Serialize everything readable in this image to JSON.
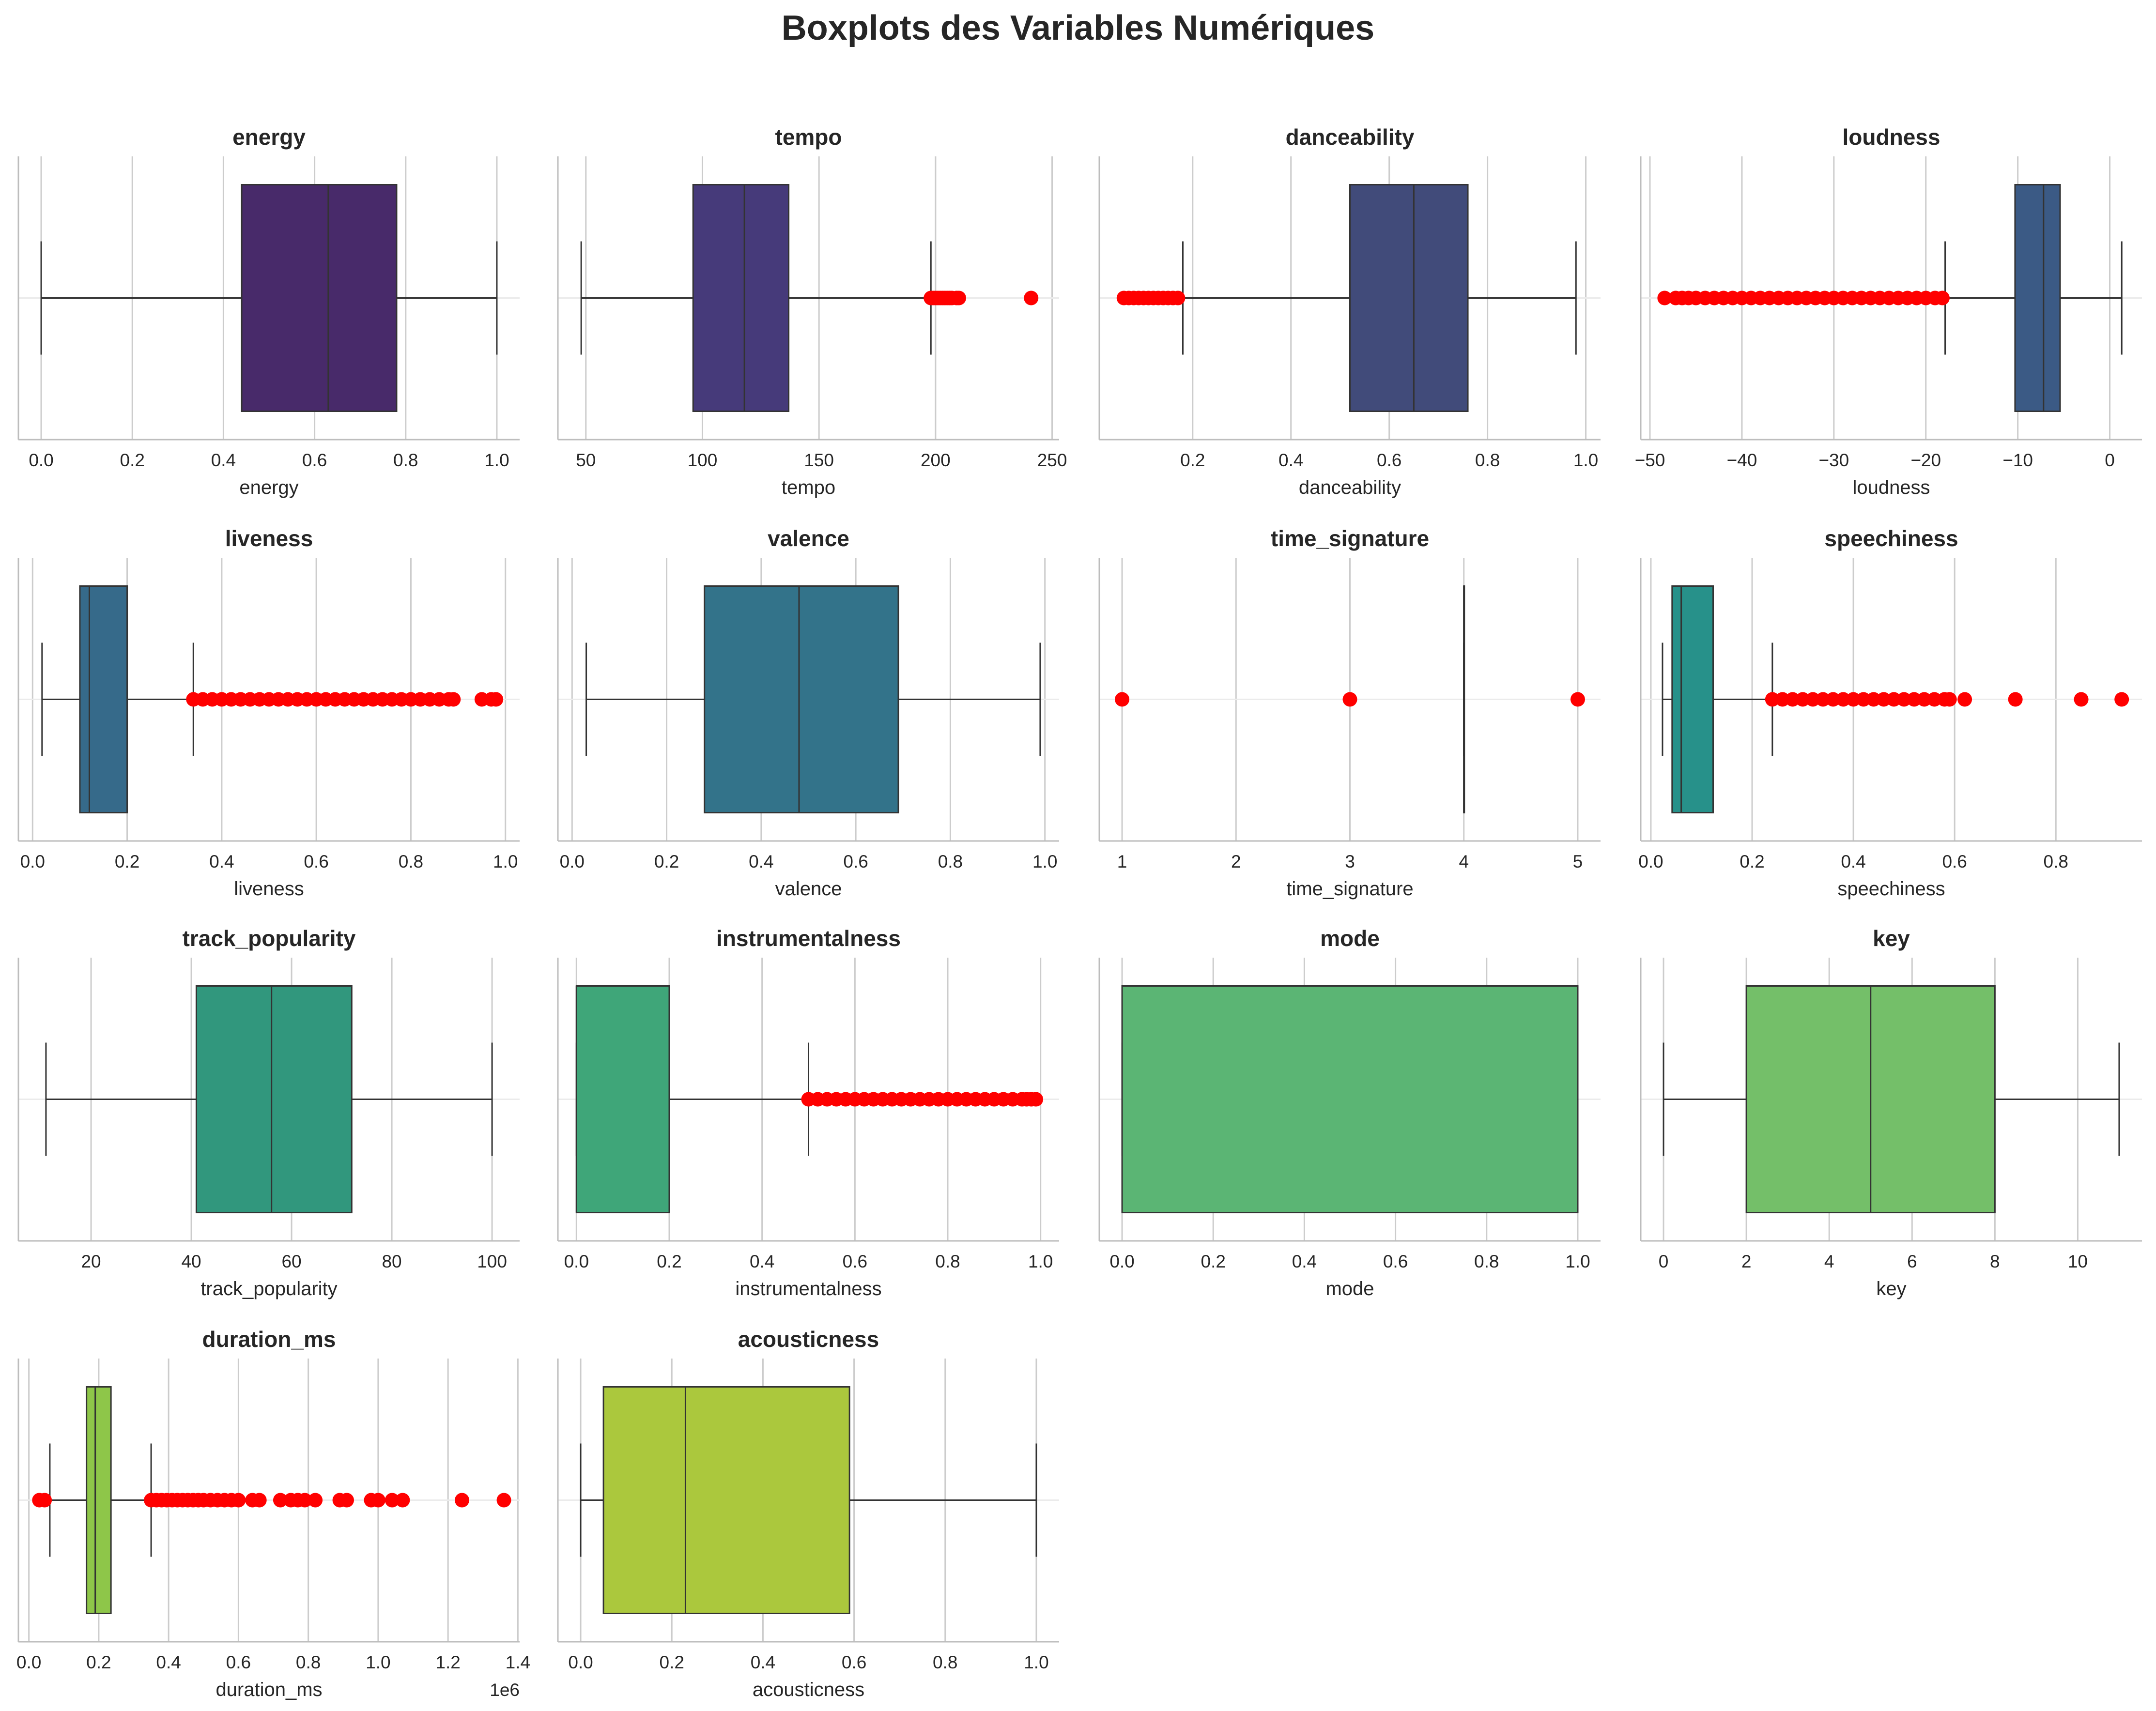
{
  "title": "Boxplots des Variables Numériques",
  "colors": {
    "outlier": "#ff0000",
    "grid": "#cccccc",
    "whisker": "#333333",
    "median": "#333333",
    "box_edge": "#333333"
  },
  "chart_data": [
    {
      "type": "box",
      "title": "energy",
      "xlabel": "energy",
      "xlim": [
        -0.05,
        1.05
      ],
      "ticks": [
        0.0,
        0.2,
        0.4,
        0.6,
        0.8,
        1.0
      ],
      "tick_labels": [
        "0.0",
        "0.2",
        "0.4",
        "0.6",
        "0.8",
        "1.0"
      ],
      "whisker_low": 0.0,
      "q1": 0.44,
      "median": 0.63,
      "q3": 0.78,
      "whisker_high": 1.0,
      "outliers": [],
      "color": "#482a6a"
    },
    {
      "type": "box",
      "title": "tempo",
      "xlabel": "tempo",
      "xlim": [
        38,
        253
      ],
      "ticks": [
        50,
        100,
        150,
        200,
        250
      ],
      "tick_labels": [
        "50",
        "100",
        "150",
        "200",
        "250"
      ],
      "whisker_low": 48,
      "q1": 96,
      "median": 118,
      "q3": 137,
      "whisker_high": 198,
      "outliers": [
        198,
        199,
        200,
        201,
        202,
        203,
        204,
        205,
        206,
        207,
        209,
        210,
        241
      ],
      "color": "#463a7a"
    },
    {
      "type": "box",
      "title": "danceability",
      "xlabel": "danceability",
      "xlim": [
        0.01,
        1.03
      ],
      "ticks": [
        0.2,
        0.4,
        0.6,
        0.8,
        1.0
      ],
      "tick_labels": [
        "0.2",
        "0.4",
        "0.6",
        "0.8",
        "1.0"
      ],
      "whisker_low": 0.18,
      "q1": 0.52,
      "median": 0.65,
      "q3": 0.76,
      "whisker_high": 0.98,
      "outliers": [
        0.06,
        0.07,
        0.08,
        0.09,
        0.1,
        0.11,
        0.12,
        0.13,
        0.14,
        0.15,
        0.16,
        0.17
      ],
      "color": "#414b7a"
    },
    {
      "type": "box",
      "title": "loudness",
      "xlabel": "loudness",
      "xlim": [
        -51,
        3.5
      ],
      "ticks": [
        -50,
        -40,
        -30,
        -20,
        -10,
        0
      ],
      "tick_labels": [
        "−50",
        "−40",
        "−30",
        "−20",
        "−10",
        "0"
      ],
      "whisker_low": -17.9,
      "q1": -10.3,
      "median": -7.2,
      "q3": -5.4,
      "whisker_high": 1.3,
      "outliers": [
        -48.4,
        -47.2,
        -46.5,
        -45.8,
        -45,
        -44,
        -43,
        -42,
        -41,
        -40,
        -39,
        -38,
        -37,
        -36,
        -35,
        -34,
        -33,
        -32,
        -31,
        -30,
        -29,
        -28,
        -27,
        -26,
        -25,
        -24,
        -23,
        -22,
        -21,
        -20,
        -19,
        -18.2
      ],
      "color": "#3b5a85"
    },
    {
      "type": "box",
      "title": "liveness",
      "xlabel": "liveness",
      "xlim": [
        -0.03,
        1.03
      ],
      "ticks": [
        0.0,
        0.2,
        0.4,
        0.6,
        0.8,
        1.0
      ],
      "tick_labels": [
        "0.0",
        "0.2",
        "0.4",
        "0.6",
        "0.8",
        "1.0"
      ],
      "whisker_low": 0.02,
      "q1": 0.1,
      "median": 0.12,
      "q3": 0.2,
      "whisker_high": 0.34,
      "outliers": [
        0.34,
        0.36,
        0.38,
        0.4,
        0.42,
        0.44,
        0.46,
        0.48,
        0.5,
        0.52,
        0.54,
        0.56,
        0.58,
        0.6,
        0.62,
        0.64,
        0.66,
        0.68,
        0.7,
        0.72,
        0.74,
        0.76,
        0.78,
        0.8,
        0.82,
        0.84,
        0.86,
        0.88,
        0.89,
        0.95,
        0.97,
        0.98
      ],
      "color": "#366a8a"
    },
    {
      "type": "box",
      "title": "valence",
      "xlabel": "valence",
      "xlim": [
        -0.03,
        1.03
      ],
      "ticks": [
        0.0,
        0.2,
        0.4,
        0.6,
        0.8,
        1.0
      ],
      "tick_labels": [
        "0.0",
        "0.2",
        "0.4",
        "0.6",
        "0.8",
        "1.0"
      ],
      "whisker_low": 0.03,
      "q1": 0.28,
      "median": 0.48,
      "q3": 0.69,
      "whisker_high": 0.99,
      "outliers": [],
      "color": "#33738a"
    },
    {
      "type": "box",
      "title": "time_signature",
      "xlabel": "time_signature",
      "xlim": [
        0.8,
        5.2
      ],
      "ticks": [
        1,
        2,
        3,
        4,
        5
      ],
      "tick_labels": [
        "1",
        "2",
        "3",
        "4",
        "5"
      ],
      "whisker_low": 4,
      "q1": 4,
      "median": 4,
      "q3": 4,
      "whisker_high": 4,
      "outliers": [
        1,
        3,
        5
      ],
      "color": "#2c818d"
    },
    {
      "type": "box",
      "title": "speechiness",
      "xlabel": "speechiness",
      "xlim": [
        -0.02,
        0.97
      ],
      "ticks": [
        0.0,
        0.2,
        0.4,
        0.6,
        0.8
      ],
      "tick_labels": [
        "0.0",
        "0.2",
        "0.4",
        "0.6",
        "0.8"
      ],
      "whisker_low": 0.023,
      "q1": 0.042,
      "median": 0.06,
      "q3": 0.123,
      "whisker_high": 0.24,
      "outliers": [
        0.24,
        0.26,
        0.28,
        0.3,
        0.32,
        0.34,
        0.36,
        0.38,
        0.4,
        0.42,
        0.44,
        0.46,
        0.48,
        0.5,
        0.52,
        0.54,
        0.56,
        0.58,
        0.59,
        0.62,
        0.72,
        0.85,
        0.93
      ],
      "color": "#27918a"
    },
    {
      "type": "box",
      "title": "track_popularity",
      "xlabel": "track_popularity",
      "xlim": [
        5.5,
        105.5
      ],
      "ticks": [
        20,
        40,
        60,
        80,
        100
      ],
      "tick_labels": [
        "20",
        "40",
        "60",
        "80",
        "100"
      ],
      "whisker_low": 11,
      "q1": 41,
      "median": 56,
      "q3": 72,
      "whisker_high": 100,
      "outliers": [],
      "color": "#31977d"
    },
    {
      "type": "box",
      "title": "instrumentalness",
      "xlabel": "instrumentalness",
      "xlim": [
        -0.04,
        1.04
      ],
      "ticks": [
        0.0,
        0.2,
        0.4,
        0.6,
        0.8,
        1.0
      ],
      "tick_labels": [
        "0.0",
        "0.2",
        "0.4",
        "0.6",
        "0.8",
        "1.0"
      ],
      "whisker_low": 0.0,
      "q1": 0.0,
      "median": 0.0,
      "q3": 0.2,
      "whisker_high": 0.5,
      "outliers": [
        0.5,
        0.52,
        0.54,
        0.56,
        0.58,
        0.6,
        0.62,
        0.64,
        0.66,
        0.68,
        0.7,
        0.72,
        0.74,
        0.76,
        0.78,
        0.8,
        0.82,
        0.84,
        0.86,
        0.88,
        0.9,
        0.92,
        0.94,
        0.96,
        0.97,
        0.98,
        0.99
      ],
      "color": "#3fa679"
    },
    {
      "type": "box",
      "title": "mode",
      "xlabel": "mode",
      "xlim": [
        -0.05,
        1.05
      ],
      "ticks": [
        0.0,
        0.2,
        0.4,
        0.6,
        0.8,
        1.0
      ],
      "tick_labels": [
        "0.0",
        "0.2",
        "0.4",
        "0.6",
        "0.8",
        "1.0"
      ],
      "whisker_low": 0,
      "q1": 0,
      "median": 1,
      "q3": 1,
      "whisker_high": 1,
      "outliers": [],
      "color": "#5bb574"
    },
    {
      "type": "box",
      "title": "key",
      "xlabel": "key",
      "xlim": [
        -0.55,
        11.55
      ],
      "ticks": [
        0,
        2,
        4,
        6,
        8,
        10
      ],
      "tick_labels": [
        "0",
        "2",
        "4",
        "6",
        "8",
        "10"
      ],
      "whisker_low": 0,
      "q1": 2,
      "median": 5,
      "q3": 8,
      "whisker_high": 11,
      "outliers": [],
      "color": "#74bf69"
    },
    {
      "type": "box",
      "title": "duration_ms",
      "xlabel": "duration_ms",
      "axis_offset_label": "1e6",
      "xlim": [
        -30000,
        1405000
      ],
      "ticks": [
        0,
        200000,
        400000,
        600000,
        800000,
        1000000,
        1200000,
        1400000
      ],
      "tick_labels": [
        "0.0",
        "0.2",
        "0.4",
        "0.6",
        "0.8",
        "1.0",
        "1.2",
        "1.4"
      ],
      "whisker_low": 60000,
      "q1": 165000,
      "median": 190000,
      "q3": 235000,
      "whisker_high": 350000,
      "outliers": [
        30000,
        45000,
        350000,
        365000,
        380000,
        395000,
        410000,
        425000,
        440000,
        455000,
        470000,
        485000,
        500000,
        520000,
        540000,
        560000,
        580000,
        600000,
        640000,
        660000,
        720000,
        750000,
        770000,
        790000,
        820000,
        890000,
        910000,
        980000,
        1000000,
        1040000,
        1070000,
        1240000,
        1360000
      ],
      "color": "#8ec649"
    },
    {
      "type": "box",
      "title": "acousticness",
      "xlabel": "acousticness",
      "xlim": [
        -0.05,
        1.05
      ],
      "ticks": [
        0.0,
        0.2,
        0.4,
        0.6,
        0.8,
        1.0
      ],
      "tick_labels": [
        "0.0",
        "0.2",
        "0.4",
        "0.6",
        "0.8",
        "1.0"
      ],
      "whisker_low": 0.0,
      "q1": 0.05,
      "median": 0.23,
      "q3": 0.59,
      "whisker_high": 1.0,
      "outliers": [],
      "color": "#abc83d"
    }
  ]
}
